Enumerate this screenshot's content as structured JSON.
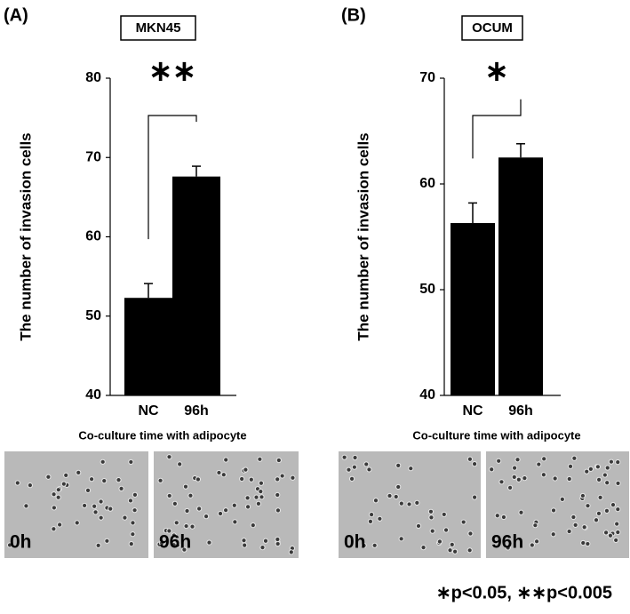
{
  "chart_data": [
    {
      "type": "bar",
      "panel": "(A)",
      "title": "MKN45",
      "ylabel": "The number of invasion cells",
      "xlabel": "Co-culture time with adipocyte",
      "categories": [
        "NC",
        "96h"
      ],
      "values": [
        52.3,
        67.6
      ],
      "errors": [
        1.8,
        1.3
      ],
      "color": "#000000",
      "ylim": [
        40,
        80
      ],
      "yticks": [
        40,
        50,
        60,
        70,
        80
      ],
      "significance": "∗∗"
    },
    {
      "type": "bar",
      "panel": "(B)",
      "title": "OCUM",
      "ylabel": "The number of invasion cells",
      "xlabel": "Co-culture time with adipocyte",
      "categories": [
        "NC",
        "96h"
      ],
      "values": [
        56.3,
        62.5
      ],
      "errors": [
        1.9,
        1.3
      ],
      "color": "#000000",
      "ylim": [
        40,
        70
      ],
      "yticks": [
        40,
        50,
        60,
        70
      ],
      "significance": "∗"
    }
  ],
  "images": [
    [
      "0h",
      "96h"
    ],
    [
      "0h",
      "96h"
    ]
  ],
  "footnote": "∗p<0.05, ∗∗p<0.005"
}
